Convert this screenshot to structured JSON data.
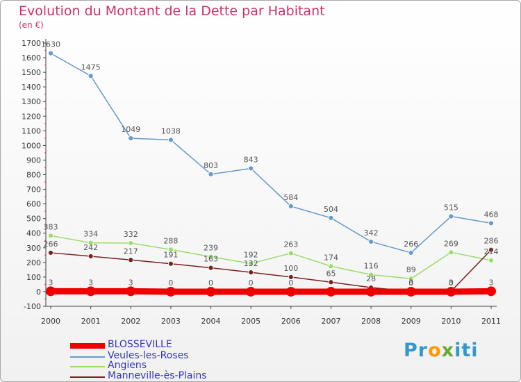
{
  "title": "Evolution du Montant de la Dette par Habitant",
  "subtitle": "(en €)",
  "logo": {
    "parts": [
      "Pr",
      "o",
      "x",
      "iti"
    ],
    "colors": [
      "#3399cc",
      "#ff9900",
      "#66aa33",
      "#3399cc"
    ]
  },
  "chart_data": {
    "type": "line",
    "title": "Evolution du Montant de la Dette par Habitant",
    "xlabel": "",
    "ylabel": "(en €)",
    "ylim": [
      -100,
      1700
    ],
    "yticks": [
      -100,
      0,
      100,
      200,
      300,
      400,
      500,
      600,
      700,
      800,
      900,
      1000,
      1100,
      1200,
      1300,
      1400,
      1500,
      1600,
      1700
    ],
    "categories": [
      "2000",
      "2001",
      "2002",
      "2003",
      "2004",
      "2005",
      "2006",
      "2007",
      "2008",
      "2009",
      "2010",
      "2011"
    ],
    "grid": false,
    "legend": "bottom-left",
    "series": [
      {
        "name": "BLOSSEVILLE",
        "color": "#ee0000",
        "width": 9,
        "marker": 7,
        "values": [
          3,
          3,
          3,
          0,
          0,
          0,
          0,
          0,
          0,
          0,
          0,
          3
        ],
        "labels": [
          "3",
          "3",
          "3",
          "0",
          "0",
          "0",
          "0",
          "",
          "",
          "0",
          "0",
          "3"
        ]
      },
      {
        "name": "Veules-les-Roses",
        "color": "#6699cc",
        "width": 1.5,
        "marker": 3.5,
        "values": [
          1630,
          1475,
          1049,
          1038,
          803,
          843,
          584,
          504,
          342,
          266,
          515,
          468
        ],
        "labels": [
          "1630",
          "1475",
          "1049",
          "1038",
          "803",
          "843",
          "584",
          "504",
          "342",
          "266",
          "515",
          "468"
        ]
      },
      {
        "name": "Angiens",
        "color": "#99dd66",
        "width": 1.5,
        "marker": 3.5,
        "values": [
          383,
          334,
          332,
          288,
          239,
          192,
          263,
          174,
          116,
          89,
          269,
          214
        ],
        "labels": [
          "383",
          "334",
          "332",
          "288",
          "239",
          "192",
          "263",
          "174",
          "116",
          "89",
          "269",
          "214"
        ]
      },
      {
        "name": "Manneville-ès-Plains",
        "color": "#772222",
        "width": 1.5,
        "marker": 3.5,
        "values": [
          266,
          242,
          217,
          191,
          163,
          132,
          100,
          65,
          28,
          3,
          3,
          286
        ],
        "labels": [
          "266",
          "242",
          "217",
          "191",
          "163",
          "132",
          "100",
          "65",
          "28",
          "3",
          "3",
          "286"
        ]
      }
    ]
  }
}
